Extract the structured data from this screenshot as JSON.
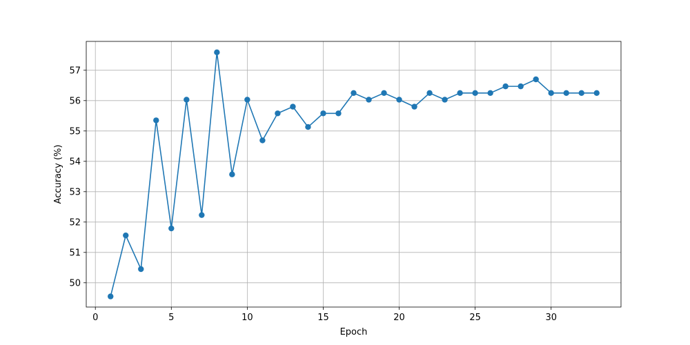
{
  "chart_data": {
    "type": "line",
    "xlabel": "Epoch",
    "ylabel": "Accuracy (%)",
    "xlim": [
      -0.6,
      34.6
    ],
    "ylim": [
      49.2,
      57.95
    ],
    "xticks": [
      0,
      5,
      10,
      15,
      20,
      25,
      30
    ],
    "yticks": [
      50,
      51,
      52,
      53,
      54,
      55,
      56,
      57
    ],
    "grid": true,
    "legend": "none",
    "series": [
      {
        "color": "#1f77b4",
        "marker": "circle",
        "x": [
          1,
          2,
          3,
          4,
          5,
          6,
          7,
          8,
          9,
          10,
          11,
          12,
          13,
          14,
          15,
          16,
          17,
          18,
          19,
          20,
          21,
          22,
          23,
          24,
          25,
          26,
          27,
          28,
          29,
          30,
          31,
          32,
          33
        ],
        "values": [
          49.55,
          51.56,
          50.45,
          55.35,
          51.79,
          56.03,
          52.23,
          57.59,
          53.57,
          56.03,
          54.69,
          55.58,
          55.8,
          55.13,
          55.58,
          55.58,
          56.25,
          56.03,
          56.25,
          56.03,
          55.8,
          56.25,
          56.03,
          56.25,
          56.25,
          56.25,
          56.47,
          56.47,
          56.7,
          56.25,
          56.25,
          56.25,
          56.25
        ]
      }
    ]
  }
}
